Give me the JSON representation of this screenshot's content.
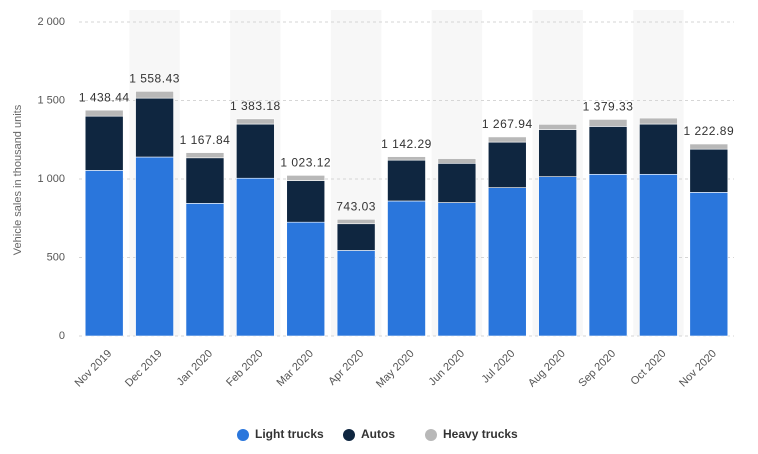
{
  "chart_data": {
    "type": "stacked_bar",
    "y_axis_label": "Vehicle sales in thousand units",
    "categories": [
      "Nov 2019",
      "Dec 2019",
      "Jan 2020",
      "Feb 2020",
      "Mar 2020",
      "Apr 2020",
      "May 2020",
      "Jun 2020",
      "Jul 2020",
      "Aug 2020",
      "Sep 2020",
      "Oct 2020",
      "Nov 2020"
    ],
    "series": [
      {
        "name": "Light trucks",
        "color": "#2a76dc",
        "values": [
          1055,
          1140,
          845,
          1005,
          725,
          545,
          860,
          850,
          945,
          1015,
          1030,
          1030,
          915
        ]
      },
      {
        "name": "Autos",
        "color": "#0f2640",
        "values": [
          345,
          375,
          290,
          345,
          265,
          170,
          260,
          250,
          290,
          300,
          305,
          320,
          275
        ]
      },
      {
        "name": "Heavy trucks",
        "color": "#b8b8b8",
        "values": [
          38.44,
          43.43,
          32.84,
          33.18,
          33.12,
          28.03,
          22.29,
          30,
          32.94,
          33,
          44.33,
          38,
          32.89
        ]
      }
    ],
    "totals": [
      1438.44,
      1558.43,
      1167.84,
      1383.18,
      1023.12,
      743.03,
      1142.29,
      null,
      1267.94,
      null,
      1379.33,
      null,
      1222.89
    ],
    "total_labels": [
      "1 438.44",
      "1 558.43",
      "1 167.84",
      "1 383.18",
      "1 023.12",
      "743.03",
      "1 142.29",
      null,
      "1 267.94",
      null,
      "1 379.33",
      null,
      "1 222.89"
    ],
    "ylim": [
      0,
      2000
    ],
    "yticks": [
      0,
      500,
      {
        "value": 1000,
        "label": "1 000"
      },
      {
        "value": 1500,
        "label": "1 500"
      },
      {
        "value": 2000,
        "label": "2 000"
      }
    ],
    "grid": true
  }
}
